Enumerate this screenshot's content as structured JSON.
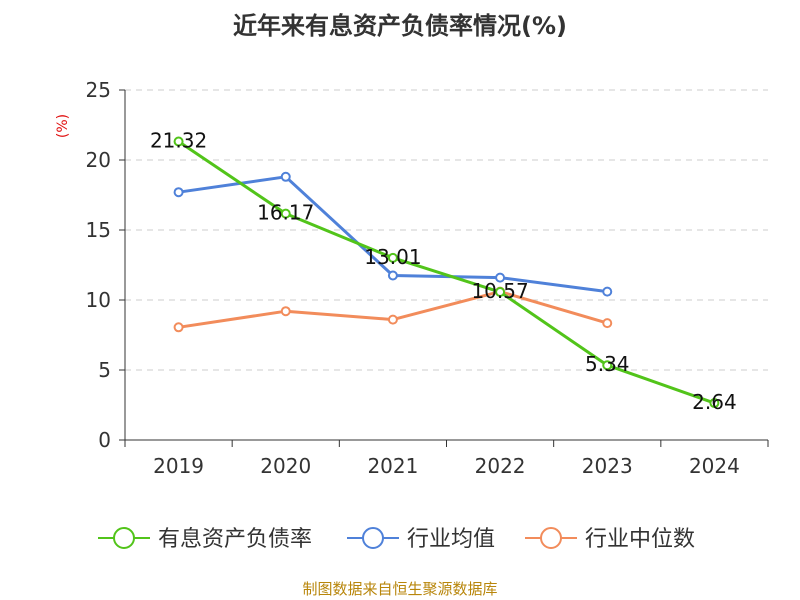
{
  "chart_data": {
    "type": "line",
    "title": "近年来有息资产负债率情况(%)",
    "ylabel": "(%)",
    "xlabel": "",
    "categories": [
      "2019",
      "2020",
      "2021",
      "2022",
      "2023",
      "2024"
    ],
    "ylim": [
      0,
      25
    ],
    "yticks": [
      0,
      5,
      10,
      15,
      20,
      25
    ],
    "grid": true,
    "legend_position": "bottom",
    "series": [
      {
        "name": "有息资产负债率",
        "color": "#52c41a",
        "values": [
          21.32,
          16.17,
          13.01,
          10.57,
          5.34,
          2.64
        ],
        "labels": [
          "21.32",
          "16.17",
          "13.01",
          "10.57",
          "5.34",
          "2.64"
        ]
      },
      {
        "name": "行业均值",
        "color": "#4f81d9",
        "values": [
          17.7,
          18.8,
          11.75,
          11.6,
          10.6,
          null
        ]
      },
      {
        "name": "行业中位数",
        "color": "#f28c5b",
        "values": [
          8.05,
          9.2,
          8.6,
          10.6,
          8.35,
          null
        ]
      }
    ],
    "source": "制图数据来自恒生聚源数据库"
  }
}
